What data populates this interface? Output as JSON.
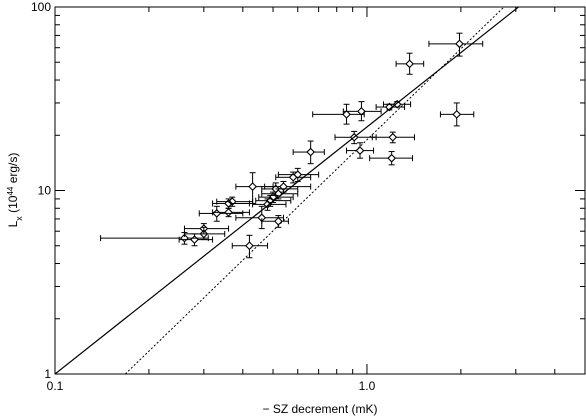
{
  "chart_data": {
    "type": "scatter",
    "xscale": "log",
    "yscale": "log",
    "xlim": [
      0.1,
      5.0
    ],
    "ylim": [
      1,
      100
    ],
    "xlabel": "− SZ decrement (mK)",
    "ylabel_main": "L",
    "ylabel_sub": "x",
    "ylabel_units": " (10",
    "ylabel_exp": "44",
    "ylabel_end": " erg/s)",
    "x_ticks": [
      {
        "value": 0.1,
        "label": "0.1"
      },
      {
        "value": 1.0,
        "label": "1.0"
      }
    ],
    "y_ticks": [
      {
        "value": 1,
        "label": "1"
      },
      {
        "value": 10,
        "label": "10"
      },
      {
        "value": 100,
        "label": "100"
      }
    ],
    "grid": false,
    "points": [
      {
        "x": 0.26,
        "y": 5.5,
        "xlo": 0.14,
        "xhi": 0.31,
        "ylo": 5.1,
        "yhi": 5.9
      },
      {
        "x": 0.28,
        "y": 5.4,
        "xlo": 0.25,
        "xhi": 0.32,
        "ylo": 5.0,
        "yhi": 5.8
      },
      {
        "x": 0.3,
        "y": 5.8,
        "xlo": 0.26,
        "xhi": 0.35,
        "ylo": 5.4,
        "yhi": 6.3
      },
      {
        "x": 0.3,
        "y": 6.2,
        "xlo": 0.26,
        "xhi": 0.36,
        "ylo": 5.8,
        "yhi": 6.6
      },
      {
        "x": 0.33,
        "y": 7.5,
        "xlo": 0.29,
        "xhi": 0.4,
        "ylo": 6.8,
        "yhi": 8.2
      },
      {
        "x": 0.36,
        "y": 8.5,
        "xlo": 0.32,
        "xhi": 0.42,
        "ylo": 8.0,
        "yhi": 9.0
      },
      {
        "x": 0.36,
        "y": 7.6,
        "xlo": 0.32,
        "xhi": 0.42,
        "ylo": 7.2,
        "yhi": 8.0
      },
      {
        "x": 0.37,
        "y": 8.7,
        "xlo": 0.33,
        "xhi": 0.43,
        "ylo": 8.2,
        "yhi": 9.2
      },
      {
        "x": 0.42,
        "y": 5.0,
        "xlo": 0.37,
        "xhi": 0.48,
        "ylo": 4.3,
        "yhi": 5.7
      },
      {
        "x": 0.43,
        "y": 10.5,
        "xlo": 0.38,
        "xhi": 0.5,
        "ylo": 8.5,
        "yhi": 12.5
      },
      {
        "x": 0.46,
        "y": 7.1,
        "xlo": 0.38,
        "xhi": 0.54,
        "ylo": 6.2,
        "yhi": 8.2
      },
      {
        "x": 0.48,
        "y": 8.4,
        "xlo": 0.43,
        "xhi": 0.55,
        "ylo": 7.8,
        "yhi": 9.0
      },
      {
        "x": 0.49,
        "y": 8.8,
        "xlo": 0.44,
        "xhi": 0.57,
        "ylo": 8.2,
        "yhi": 9.4
      },
      {
        "x": 0.5,
        "y": 9.2,
        "xlo": 0.45,
        "xhi": 0.58,
        "ylo": 8.6,
        "yhi": 9.8
      },
      {
        "x": 0.51,
        "y": 10.2,
        "xlo": 0.46,
        "xhi": 0.6,
        "ylo": 9.4,
        "yhi": 11.0
      },
      {
        "x": 0.52,
        "y": 6.8,
        "xlo": 0.46,
        "xhi": 0.56,
        "ylo": 6.3,
        "yhi": 7.3
      },
      {
        "x": 0.52,
        "y": 9.6,
        "xlo": 0.46,
        "xhi": 0.6,
        "ylo": 9.0,
        "yhi": 10.2
      },
      {
        "x": 0.54,
        "y": 10.5,
        "xlo": 0.47,
        "xhi": 0.66,
        "ylo": 9.8,
        "yhi": 11.2
      },
      {
        "x": 0.58,
        "y": 11.8,
        "xlo": 0.51,
        "xhi": 0.66,
        "ylo": 11.0,
        "yhi": 12.6
      },
      {
        "x": 0.6,
        "y": 12.2,
        "xlo": 0.52,
        "xhi": 0.7,
        "ylo": 11.2,
        "yhi": 13.2
      },
      {
        "x": 0.66,
        "y": 16.2,
        "xlo": 0.58,
        "xhi": 0.73,
        "ylo": 14.0,
        "yhi": 18.6
      },
      {
        "x": 0.86,
        "y": 26.0,
        "xlo": 0.67,
        "xhi": 0.98,
        "ylo": 23.0,
        "yhi": 29.5
      },
      {
        "x": 0.91,
        "y": 19.5,
        "xlo": 0.79,
        "xhi": 1.07,
        "ylo": 18.0,
        "yhi": 21.0
      },
      {
        "x": 0.95,
        "y": 16.5,
        "xlo": 0.86,
        "xhi": 1.05,
        "ylo": 15.0,
        "yhi": 18.2
      },
      {
        "x": 0.96,
        "y": 27.0,
        "xlo": 0.84,
        "xhi": 1.11,
        "ylo": 24.0,
        "yhi": 30.5
      },
      {
        "x": 1.18,
        "y": 28.5,
        "xlo": 1.07,
        "xhi": 1.32,
        "ylo": 27.5,
        "yhi": 29.5
      },
      {
        "x": 1.2,
        "y": 15.0,
        "xlo": 1.02,
        "xhi": 1.4,
        "ylo": 13.8,
        "yhi": 16.3
      },
      {
        "x": 1.21,
        "y": 19.5,
        "xlo": 1.04,
        "xhi": 1.42,
        "ylo": 18.2,
        "yhi": 20.8
      },
      {
        "x": 1.25,
        "y": 29.5,
        "xlo": 1.13,
        "xhi": 1.38,
        "ylo": 28.5,
        "yhi": 30.5
      },
      {
        "x": 1.37,
        "y": 49.0,
        "xlo": 1.24,
        "xhi": 1.52,
        "ylo": 43.0,
        "yhi": 56.0
      },
      {
        "x": 1.94,
        "y": 26.0,
        "xlo": 1.72,
        "xhi": 2.2,
        "ylo": 22.5,
        "yhi": 30.0
      },
      {
        "x": 1.98,
        "y": 63.0,
        "xlo": 1.58,
        "xhi": 2.35,
        "ylo": 54.0,
        "yhi": 72.0
      }
    ],
    "lines": [
      {
        "style": "solid",
        "x": [
          0.1,
          3.06
        ],
        "y": [
          1.0,
          100.0
        ]
      },
      {
        "style": "dotted",
        "x": [
          0.168,
          2.75
        ],
        "y": [
          1.0,
          100.0
        ]
      }
    ]
  }
}
